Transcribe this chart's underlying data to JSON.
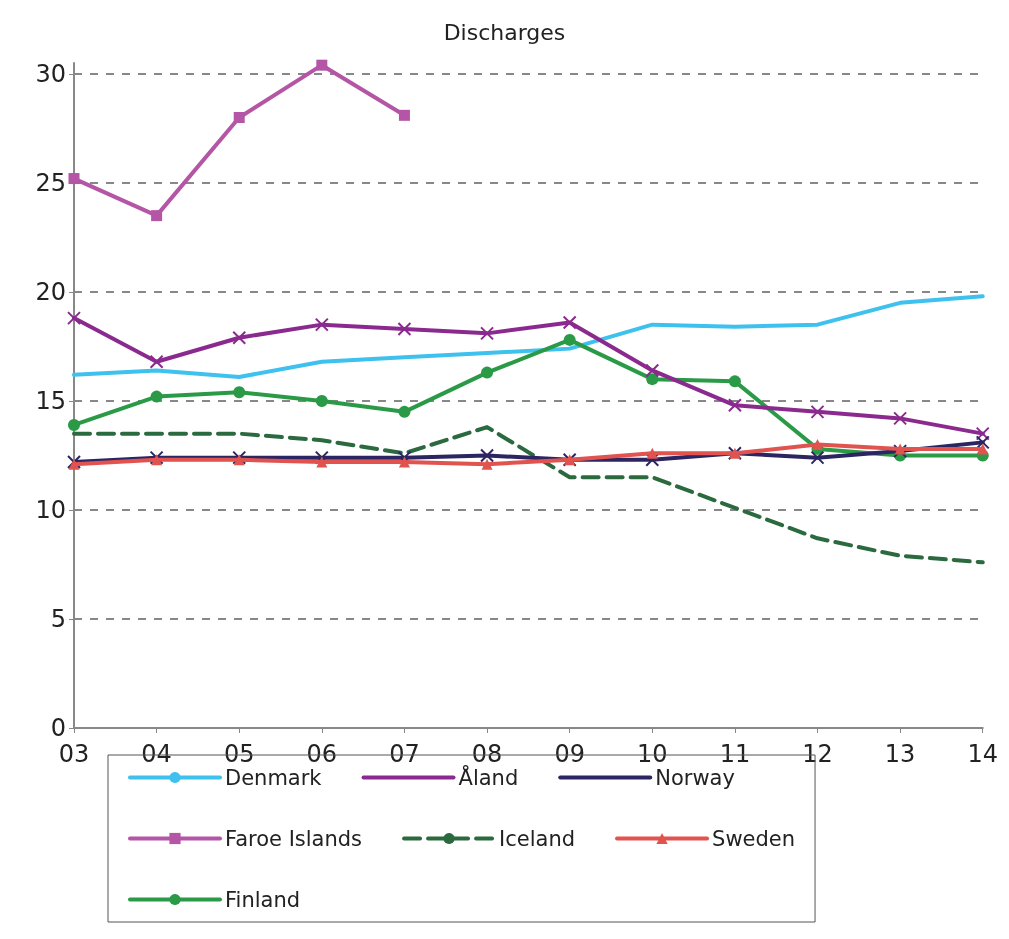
{
  "chart_data": {
    "type": "line",
    "title": "Discharges",
    "categories": [
      "03",
      "04",
      "05",
      "06",
      "07",
      "08",
      "09",
      "10",
      "11",
      "12",
      "13",
      "14"
    ],
    "series": [
      {
        "name": "Denmark",
        "color": "#3ec1ee",
        "marker": "none",
        "values": [
          16.2,
          16.4,
          16.1,
          16.8,
          17.0,
          17.2,
          17.4,
          18.5,
          18.4,
          18.5,
          19.5,
          19.8
        ]
      },
      {
        "name": "Åland",
        "color": "#8b2a8e",
        "marker": "cross",
        "values": [
          18.8,
          16.8,
          17.9,
          18.5,
          18.3,
          18.1,
          18.6,
          16.4,
          14.8,
          14.5,
          14.2,
          13.5
        ]
      },
      {
        "name": "Norway",
        "color": "#2b2561",
        "marker": "cross",
        "values": [
          12.2,
          12.4,
          12.4,
          12.4,
          12.4,
          12.5,
          12.3,
          12.3,
          12.6,
          12.4,
          12.7,
          13.1
        ]
      },
      {
        "name": "Faroe Islands",
        "color": "#b455a5",
        "marker": "square",
        "values": [
          25.2,
          23.5,
          28.0,
          30.4,
          28.1,
          null,
          null,
          null,
          null,
          null,
          null,
          null
        ]
      },
      {
        "name": "Iceland",
        "color": "#2a6a3e",
        "marker": "none",
        "line_style": "dashed",
        "values": [
          13.5,
          13.5,
          13.5,
          13.2,
          12.6,
          13.8,
          11.5,
          11.5,
          10.1,
          8.7,
          7.9,
          7.6
        ]
      },
      {
        "name": "Sweden",
        "color": "#e0534f",
        "marker": "triangle",
        "values": [
          12.1,
          12.3,
          12.3,
          12.2,
          12.2,
          12.1,
          12.3,
          12.6,
          12.6,
          13.0,
          12.8,
          12.8
        ]
      },
      {
        "name": "Finland",
        "color": "#2a9a47",
        "marker": "circle",
        "values": [
          13.9,
          15.2,
          15.4,
          15.0,
          14.5,
          16.3,
          17.8,
          16.0,
          15.9,
          12.8,
          12.5,
          12.5
        ]
      }
    ],
    "ylim": [
      0,
      30.5
    ],
    "yticks": [
      0,
      5,
      10,
      15,
      20,
      25,
      30
    ],
    "grid": "y",
    "legend": "bottom"
  }
}
